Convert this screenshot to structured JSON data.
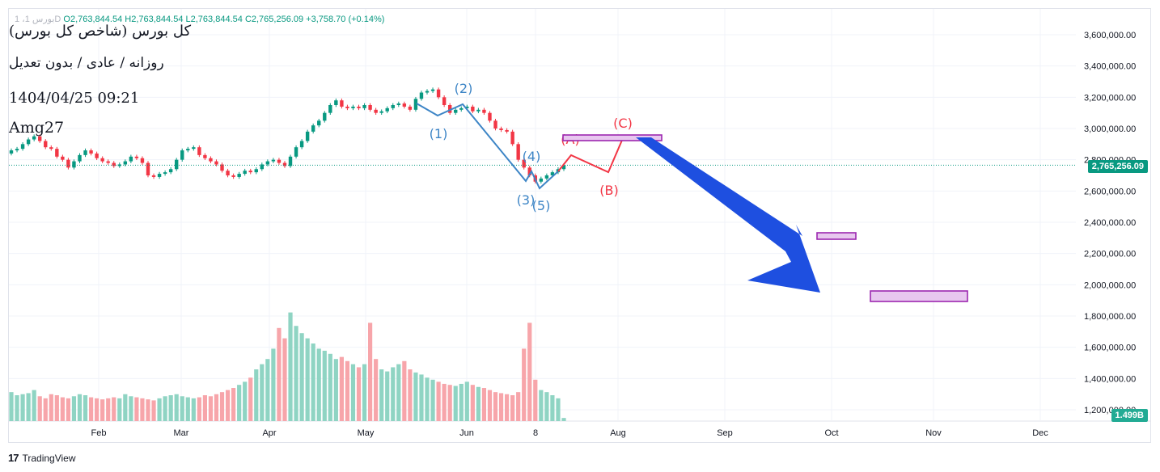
{
  "legend": {
    "symbol": "1 ،بورس 1D",
    "open": "O2,763,844.54",
    "high": "H2,763,844.54",
    "low": "L2,763,844.54",
    "close": "C2,765,256.09",
    "change": "+3,758.70 (+0.14%)"
  },
  "watermark": {
    "title": "(کل بورس (شاخص کل بورس",
    "subtitle": "روزانه / عادی / بدون تعدیل",
    "datetime": "1404/04/25 09:21",
    "author": "Amg27"
  },
  "footer": {
    "brand": "TradingView"
  },
  "price_badge": "2,765,256.09",
  "volume_badge": "1.499B",
  "colors": {
    "up": "#089981",
    "down": "#f23645",
    "vol_up": "#8fd4c3",
    "vol_down": "#f7a5aa",
    "wave_blue": "#3d85c6",
    "wave_red": "#f23645",
    "box_purple": "#9c27b0",
    "arrow": "#1e4fe0"
  },
  "chart_data": {
    "type": "candlestick",
    "y_ticks": [
      "3,600,000.00",
      "3,400,000.00",
      "3,200,000.00",
      "3,000,000.00",
      "2,800,000.00",
      "2,600,000.00",
      "2,400,000.00",
      "2,200,000.00",
      "2,000,000.00",
      "1,800,000.00",
      "1,600,000.00",
      "1,400,000.00",
      "1,200,000.00"
    ],
    "x_ticks": [
      "Feb",
      "Mar",
      "Apr",
      "May",
      "Jun",
      "8",
      "Aug",
      "Sep",
      "Oct",
      "Nov",
      "Dec"
    ],
    "last_price": 2765256.09,
    "closes": [
      2860000,
      2870000,
      2900000,
      2930000,
      2950000,
      2920000,
      2880000,
      2870000,
      2820000,
      2800000,
      2750000,
      2790000,
      2830000,
      2860000,
      2840000,
      2810000,
      2790000,
      2780000,
      2760000,
      2770000,
      2790000,
      2820000,
      2810000,
      2780000,
      2700000,
      2690000,
      2710000,
      2720000,
      2740000,
      2800000,
      2860000,
      2870000,
      2880000,
      2830000,
      2810000,
      2790000,
      2770000,
      2730000,
      2700000,
      2690000,
      2710000,
      2730000,
      2720000,
      2740000,
      2770000,
      2790000,
      2800000,
      2780000,
      2760000,
      2820000,
      2880000,
      2920000,
      2980000,
      3020000,
      3050000,
      3100000,
      3150000,
      3180000,
      3140000,
      3130000,
      3140000,
      3130000,
      3150000,
      3120000,
      3100000,
      3110000,
      3130000,
      3150000,
      3160000,
      3140000,
      3120000,
      3190000,
      3230000,
      3240000,
      3250000,
      3200000,
      3150000,
      3100000,
      3120000,
      3130000,
      3140000,
      3110000,
      3120000,
      3100000,
      3050000,
      3000000,
      2990000,
      2980000,
      2900000,
      2800000,
      2750000,
      2700000,
      2660000,
      2680000,
      2700000,
      2720000,
      2740000,
      2765256
    ]
  },
  "volume_data": [
    0.28,
    0.25,
    0.26,
    0.27,
    0.3,
    0.24,
    0.22,
    0.26,
    0.25,
    0.23,
    0.22,
    0.24,
    0.26,
    0.25,
    0.23,
    0.22,
    0.21,
    0.22,
    0.23,
    0.22,
    0.26,
    0.24,
    0.23,
    0.22,
    0.21,
    0.2,
    0.22,
    0.24,
    0.25,
    0.26,
    0.24,
    0.23,
    0.22,
    0.23,
    0.25,
    0.24,
    0.26,
    0.28,
    0.3,
    0.32,
    0.35,
    0.38,
    0.42,
    0.5,
    0.55,
    0.6,
    0.7,
    0.9,
    0.8,
    1.05,
    0.92,
    0.85,
    0.8,
    0.75,
    0.7,
    0.68,
    0.65,
    0.6,
    0.62,
    0.58,
    0.55,
    0.52,
    0.55,
    0.95,
    0.6,
    0.5,
    0.48,
    0.52,
    0.55,
    0.58,
    0.5,
    0.47,
    0.45,
    0.42,
    0.4,
    0.38,
    0.36,
    0.35,
    0.34,
    0.36,
    0.38,
    0.35,
    0.33,
    0.32,
    0.3,
    0.28,
    0.27,
    0.26,
    0.25,
    0.28,
    0.7,
    0.95,
    0.4,
    0.3,
    0.28,
    0.25,
    0.22,
    0.03
  ],
  "annotations": {
    "blue_labels": [
      "(1)",
      "(2)",
      "(3)",
      "(4)",
      "(5)"
    ],
    "red_labels": [
      "(A)",
      "(B)",
      "(C)"
    ]
  }
}
